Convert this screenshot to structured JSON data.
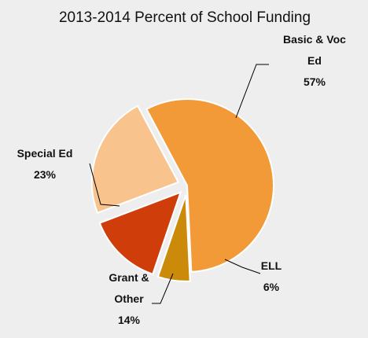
{
  "chart_data": {
    "type": "pie",
    "title": "2013-2014 Percent of School Funding",
    "slices": [
      {
        "label_lines": [
          "Basic & Voc",
          "Ed"
        ],
        "value": 57,
        "value_label": "57%",
        "color": "#f39a38",
        "exploded": false
      },
      {
        "label_lines": [
          "ELL"
        ],
        "value": 6,
        "value_label": "6%",
        "color": "#cc8a0a",
        "exploded": true
      },
      {
        "label_lines": [
          "Grant &",
          "Other"
        ],
        "value": 14,
        "value_label": "14%",
        "color": "#cf3d0b",
        "exploded": true
      },
      {
        "label_lines": [
          "Special Ed"
        ],
        "value": 23,
        "value_label": "23%",
        "color": "#f9c38e",
        "exploded": true
      }
    ],
    "start_angle_deg": 332,
    "direction": "clockwise",
    "legend": "none",
    "background": "#eeeeee",
    "slice_outline": "#ffffff"
  }
}
